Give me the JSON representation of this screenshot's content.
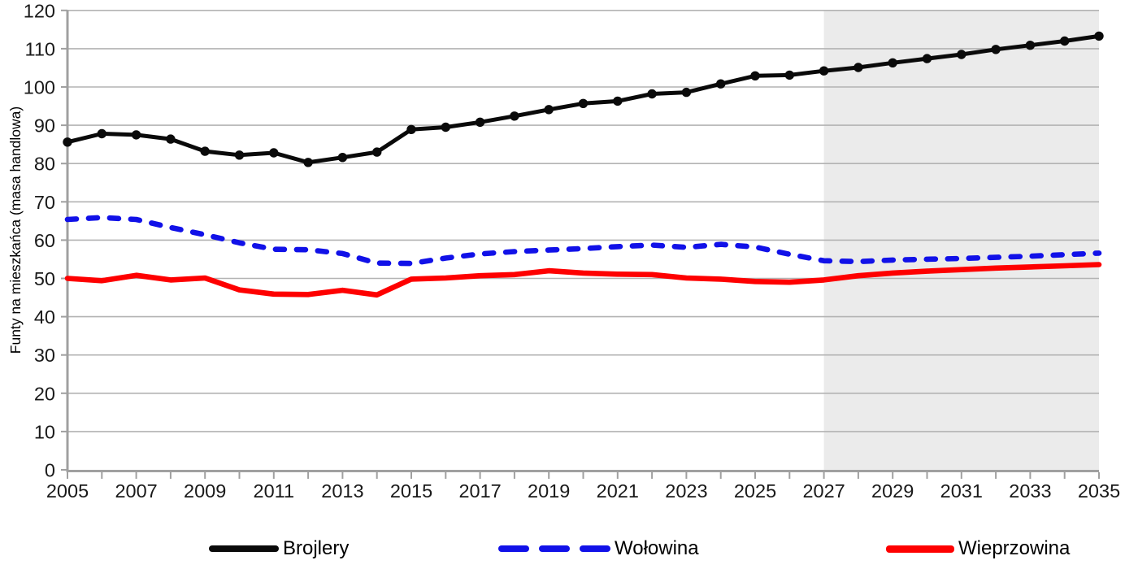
{
  "y_axis": {
    "title": "Funty na mieszkańca (masa handlowa)",
    "ticks": [
      0,
      10,
      20,
      30,
      40,
      50,
      60,
      70,
      80,
      90,
      100,
      110,
      120
    ]
  },
  "x_axis": {
    "tick_labels": [
      "2005",
      "2007",
      "2009",
      "2011",
      "2013",
      "2015",
      "2017",
      "2019",
      "2021",
      "2023",
      "2025",
      "2027",
      "2029",
      "2031",
      "2033",
      "2035"
    ]
  },
  "legend": {
    "items": [
      "Brojlery",
      "Wołowina",
      "Wieprzowina"
    ]
  },
  "colors": {
    "broilers": "#0a0a0a",
    "beef": "#1111e8",
    "pork": "#fe0000",
    "projection_shading": "#ebebeb",
    "gridline": "#b3b3b3",
    "axis": "#a0a0a0"
  },
  "chart_data": {
    "type": "line",
    "title": "",
    "xlabel": "",
    "ylabel": "Funty na mieszkańca (masa handlowa)",
    "ylim": [
      0,
      120
    ],
    "xlim": [
      2005,
      2035
    ],
    "grid": "horizontal",
    "legend_position": "bottom",
    "shaded_region": {
      "x_from": 2027,
      "x_to": 2035,
      "color": "#ebebeb"
    },
    "x": [
      2005,
      2006,
      2007,
      2008,
      2009,
      2010,
      2011,
      2012,
      2013,
      2014,
      2015,
      2016,
      2017,
      2018,
      2019,
      2020,
      2021,
      2022,
      2023,
      2024,
      2025,
      2026,
      2027,
      2028,
      2029,
      2030,
      2031,
      2032,
      2033,
      2034,
      2035
    ],
    "series": [
      {
        "name": "Brojlery",
        "color": "#0a0a0a",
        "line_style": "solid",
        "marker": "circle",
        "values": [
          85.6,
          87.8,
          87.5,
          86.4,
          83.2,
          82.2,
          82.8,
          80.3,
          81.6,
          83.0,
          88.9,
          89.5,
          90.8,
          92.4,
          94.1,
          95.7,
          96.3,
          98.2,
          98.6,
          100.8,
          102.9,
          103.1,
          104.2,
          105.1,
          106.3,
          107.4,
          108.5,
          109.8,
          110.9,
          112.0,
          113.3
        ]
      },
      {
        "name": "Wołowina",
        "color": "#1111e8",
        "line_style": "dashed",
        "marker": "none",
        "values": [
          65.4,
          65.9,
          65.4,
          63.3,
          61.4,
          59.3,
          57.6,
          57.5,
          56.5,
          54.0,
          53.9,
          55.3,
          56.4,
          57.0,
          57.4,
          57.8,
          58.3,
          58.7,
          58.1,
          58.9,
          58.2,
          56.3,
          54.6,
          54.4,
          54.8,
          55.0,
          55.2,
          55.5,
          55.8,
          56.2,
          56.6
        ]
      },
      {
        "name": "Wieprzowina",
        "color": "#fe0000",
        "line_style": "solid",
        "marker": "none",
        "values": [
          50.0,
          49.4,
          50.8,
          49.6,
          50.1,
          47.0,
          45.9,
          45.8,
          46.9,
          45.7,
          49.8,
          50.1,
          50.7,
          51.0,
          52.0,
          51.4,
          51.1,
          51.0,
          50.1,
          49.8,
          49.2,
          49.0,
          49.6,
          50.7,
          51.4,
          51.9,
          52.3,
          52.7,
          53.0,
          53.3,
          53.6
        ]
      }
    ]
  }
}
